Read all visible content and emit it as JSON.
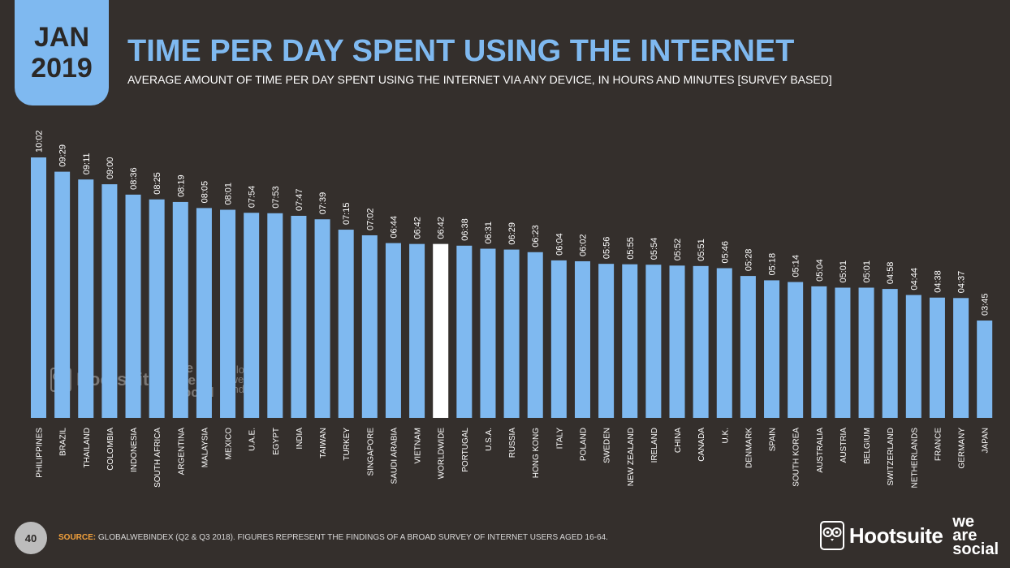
{
  "badge": {
    "month": "JAN",
    "year": "2019"
  },
  "header": {
    "title": "TIME PER DAY SPENT USING THE INTERNET",
    "subtitle": "AVERAGE AMOUNT OF TIME PER DAY SPENT USING THE INTERNET VIA ANY DEVICE, IN HOURS AND MINUTES [SURVEY BASED]"
  },
  "footer": {
    "page_number": "40",
    "source_label": "SOURCE:",
    "source_text": "GLOBALWEBINDEX (Q2 & Q3 2018). FIGURES REPRESENT THE FINDINGS OF A BROAD SURVEY OF INTERNET USERS AGED 16-64.",
    "brand_hootsuite": "Hootsuite",
    "brand_wearesocial": [
      "we",
      "are",
      "social"
    ]
  },
  "watermark": {
    "hootsuite": "Hootsuite",
    "wearesocial": [
      "we",
      "are",
      "social"
    ],
    "gwi": [
      "global",
      "web",
      "index"
    ]
  },
  "colors": {
    "background": "#342f2c",
    "bar": "#7fb9f0",
    "highlight_bar": "#ffffff",
    "text": "#ffffff",
    "accent": "#f2a13c"
  },
  "chart_data": {
    "type": "bar",
    "title": "TIME PER DAY SPENT USING THE INTERNET",
    "unit": "hh:mm",
    "highlight": "WORLDWIDE",
    "categories": [
      "PHILIPPINES",
      "BRAZIL",
      "THAILAND",
      "COLOMBIA",
      "INDONESIA",
      "SOUTH AFRICA",
      "ARGENTINA",
      "MALAYSIA",
      "MEXICO",
      "U.A.E.",
      "EGYPT",
      "INDIA",
      "TAIWAN",
      "TURKEY",
      "SINGAPORE",
      "SAUDI ARABIA",
      "VIETNAM",
      "WORLDWIDE",
      "PORTUGAL",
      "U.S.A.",
      "RUSSIA",
      "HONG KONG",
      "ITALY",
      "POLAND",
      "SWEDEN",
      "NEW ZEALAND",
      "IRELAND",
      "CHINA",
      "CANADA",
      "U.K.",
      "DENMARK",
      "SPAIN",
      "SOUTH KOREA",
      "AUSTRALIA",
      "AUSTRIA",
      "BELGIUM",
      "SWITZERLAND",
      "NETHERLANDS",
      "FRANCE",
      "GERMANY",
      "JAPAN"
    ],
    "labels": [
      "10:02",
      "09:29",
      "09:11",
      "09:00",
      "08:36",
      "08:25",
      "08:19",
      "08:05",
      "08:01",
      "07:54",
      "07:53",
      "07:47",
      "07:39",
      "07:15",
      "07:02",
      "06:44",
      "06:42",
      "06:42",
      "06:38",
      "06:31",
      "06:29",
      "06:23",
      "06:04",
      "06:02",
      "05:56",
      "05:55",
      "05:54",
      "05:52",
      "05:51",
      "05:46",
      "05:28",
      "05:18",
      "05:14",
      "05:04",
      "05:01",
      "05:01",
      "04:58",
      "04:44",
      "04:38",
      "04:37",
      "03:45"
    ]
  }
}
